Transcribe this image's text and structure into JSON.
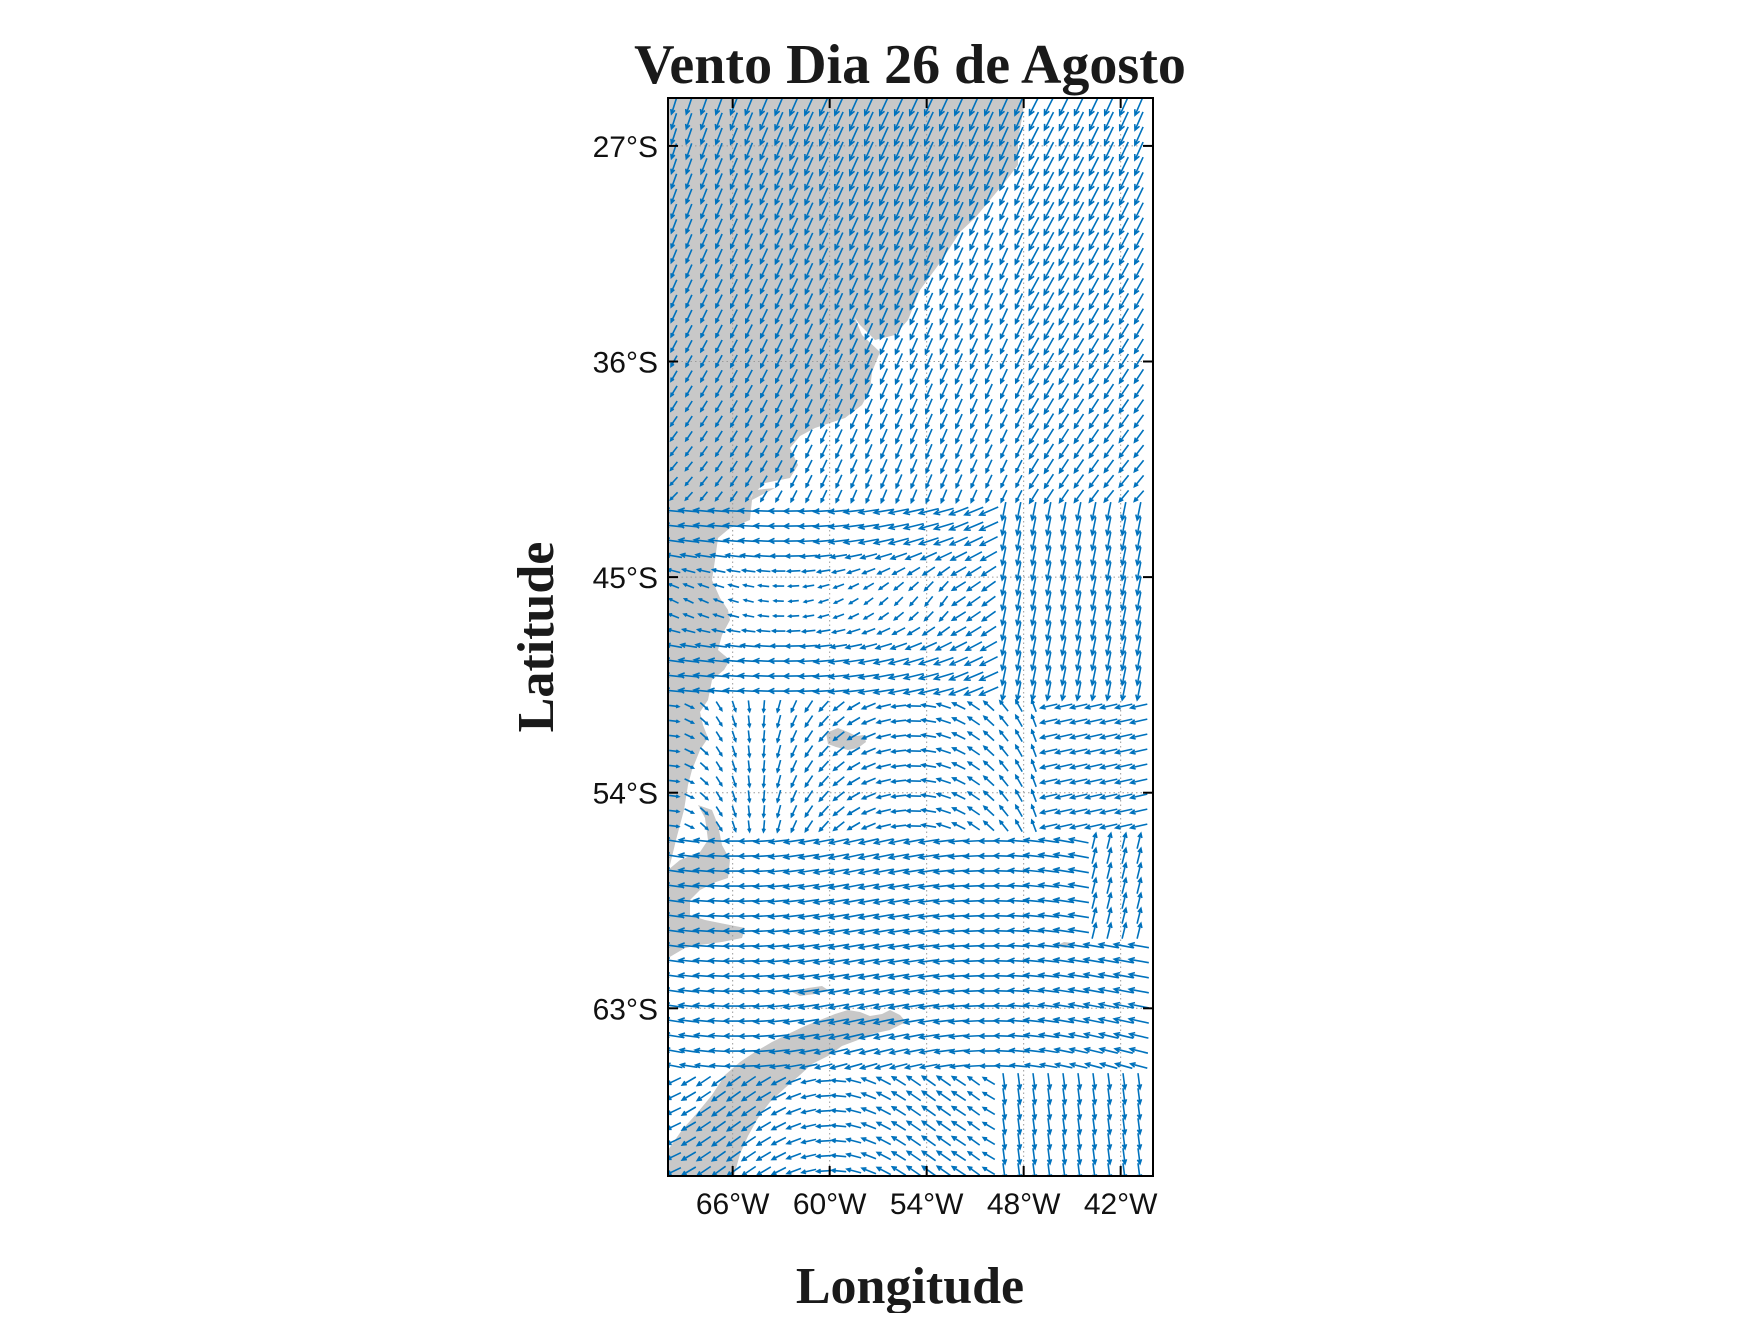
{
  "title": "Vento Dia 26 de Agosto",
  "xlabel": "Longitude",
  "ylabel": "Latitude",
  "colors": {
    "arrows": "#0072BD",
    "land": "#C8C8C8",
    "grid": "#9A9A9A",
    "frame": "#000000"
  },
  "chart_data": {
    "type": "quiver-map",
    "title": "Vento Dia 26 de Agosto",
    "xlabel": "Longitude",
    "ylabel": "Latitude",
    "xlim": [
      -70,
      -40
    ],
    "ylim": [
      -70,
      -25
    ],
    "x_ticks": [
      {
        "value": -66,
        "label": "66°W"
      },
      {
        "value": -60,
        "label": "60°W"
      },
      {
        "value": -54,
        "label": "54°W"
      },
      {
        "value": -48,
        "label": "48°W"
      },
      {
        "value": -42,
        "label": "42°W"
      }
    ],
    "y_ticks": [
      {
        "value": -27,
        "label": "27°S"
      },
      {
        "value": -36,
        "label": "36°S"
      },
      {
        "value": -45,
        "label": "45°S"
      },
      {
        "value": -54,
        "label": "54°S"
      },
      {
        "value": -63,
        "label": "63°S"
      }
    ],
    "grid": true,
    "grid_style": "dotted",
    "land": "gray fill (South America, Antarctic Peninsula)"
  }
}
